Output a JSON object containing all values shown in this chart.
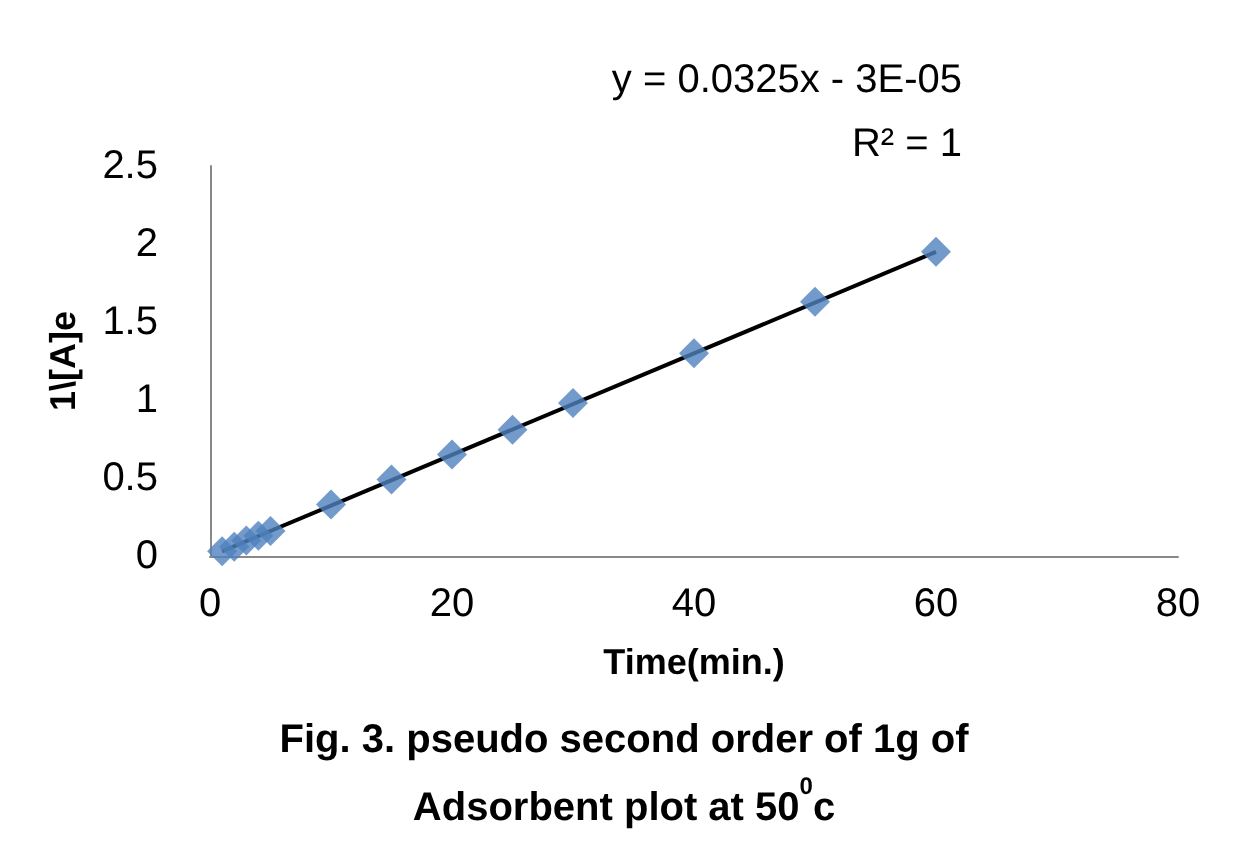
{
  "chart_data": {
    "type": "scatter",
    "title": "Fig. 3. pseudo second order of 1g of\nAdsorbent plot at 50$^{0}$c",
    "xlabel": "Time(min.)",
    "ylabel": "1\\[A]e",
    "x": [
      1,
      2,
      3,
      4,
      5,
      10,
      15,
      20,
      25,
      30,
      40,
      50,
      60
    ],
    "series": [
      {
        "color": "#4f81bd",
        "values": [
          0.03,
          0.06,
          0.1,
          0.13,
          0.16,
          0.33,
          0.49,
          0.65,
          0.81,
          0.98,
          1.3,
          1.63,
          1.95
        ]
      },
      {
        "type": "line",
        "color": "#000000",
        "x": [
          1,
          60
        ],
        "values": [
          0.03,
          1.95
        ],
        "marker": "none"
      }
    ],
    "annotations": [
      "y = 0.0325x - 3E-05",
      "R² = 1"
    ],
    "xlim": [
      0,
      80
    ],
    "xticks": [
      0,
      20,
      40,
      60,
      80
    ],
    "ylim": [
      0,
      2.5
    ],
    "yticks": [
      0,
      0.5,
      1,
      1.5,
      2,
      2.5
    ],
    "grid": false,
    "marker": "diamond"
  }
}
